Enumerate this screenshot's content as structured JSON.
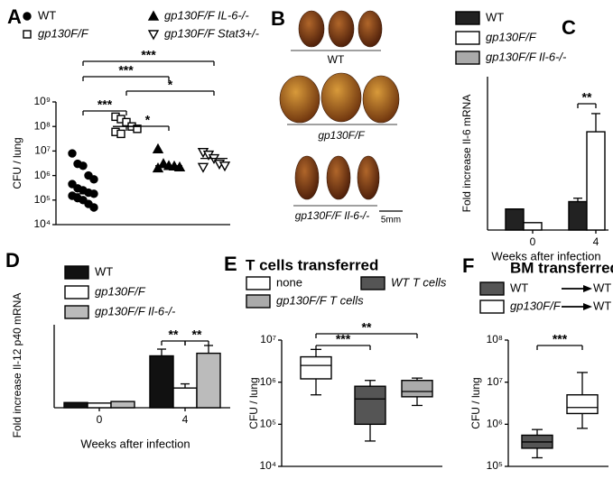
{
  "chart_data": [
    {
      "panel": "A",
      "type": "strip",
      "y_label": "CFU / lung",
      "log_scale": true,
      "ylim": [
        10000,
        1000000000
      ],
      "yticks": [
        {
          "value": 10000,
          "label": "10⁴"
        },
        {
          "value": 100000,
          "label": "10⁵"
        },
        {
          "value": 1000000,
          "label": "10⁶"
        },
        {
          "value": 10000000,
          "label": "10⁷"
        },
        {
          "value": 100000000,
          "label": "10⁸"
        },
        {
          "value": 1000000000,
          "label": "10⁹"
        }
      ],
      "series": [
        {
          "name": "WT",
          "marker": "circle",
          "color": "#000000",
          "values": [
            8000000,
            3000000,
            2500000,
            1000000,
            700000,
            450000,
            300000,
            250000,
            200000,
            180000,
            150000,
            120000,
            100000,
            70000,
            50000
          ],
          "median": 180000
        },
        {
          "name": "gp130F/F",
          "marker": "square",
          "color": "#ffffff",
          "values": [
            250000000,
            200000000,
            150000000,
            100000000,
            80000000,
            60000000,
            50000000
          ],
          "median": 100000000
        },
        {
          "name": "gp130F/F IL-6-/-",
          "marker": "triangle",
          "color": "#000000",
          "values": [
            12000000,
            3000000,
            2500000,
            2400000,
            2200000,
            2000000
          ],
          "median": 2500000
        },
        {
          "name": "gp130F/F Stat3+/-",
          "marker": "triangle-down",
          "color": "#ffffff",
          "values": [
            9000000,
            7000000,
            5000000,
            3000000,
            2500000,
            2200000
          ],
          "median": 5000000
        }
      ],
      "brackets": [
        {
          "from": 0,
          "to": 3,
          "label": "***"
        },
        {
          "from": 0,
          "to": 2,
          "label": "***"
        },
        {
          "from": 1,
          "to": 3,
          "label": "*"
        },
        {
          "from": 0,
          "to": 1,
          "label": "***"
        },
        {
          "from": 1,
          "to": 2,
          "label": "*"
        }
      ]
    },
    {
      "panel": "C",
      "type": "bar",
      "y_label": "Fold increase Il-6 mRNA",
      "x_label": "Weeks after infection",
      "categories": [
        "0",
        "4"
      ],
      "ylim": [
        0,
        27
      ],
      "series": [
        {
          "name": "WT",
          "color": "#222222",
          "values": [
            3.7,
            5.0
          ],
          "errors": [
            null,
            0.6
          ]
        },
        {
          "name": "gp130F/F",
          "color": "#ffffff",
          "values": [
            1.3,
            17.3
          ],
          "errors": [
            null,
            3.2
          ]
        },
        {
          "name": "gp130F/F Il-6-/-",
          "color": "#aaaaaa",
          "values": [
            null,
            null
          ],
          "errors": [
            null,
            null
          ]
        }
      ],
      "brackets": [
        {
          "category": 1,
          "from": 0,
          "to": 1,
          "label": "**"
        }
      ]
    },
    {
      "panel": "D",
      "type": "bar",
      "y_label": "Fold increase Il-12 p40 mRNA",
      "x_label": "Weeks after infection",
      "categories": [
        "0",
        "4"
      ],
      "ylim": [
        0,
        16
      ],
      "series": [
        {
          "name": "WT",
          "color": "#111111",
          "values": [
            1.0,
            10.0
          ],
          "errors": [
            null,
            1.3
          ]
        },
        {
          "name": "gp130F/F",
          "color": "#ffffff",
          "values": [
            0.9,
            3.8
          ],
          "errors": [
            null,
            0.8
          ]
        },
        {
          "name": "gp130F/F Il-6-/-",
          "color": "#bbbbbb",
          "values": [
            1.2,
            10.5
          ],
          "errors": [
            null,
            1.5
          ]
        }
      ],
      "brackets": [
        {
          "category": 1,
          "from": 0,
          "to": 1,
          "label": "**"
        },
        {
          "category": 1,
          "from": 1,
          "to": 2,
          "label": "**"
        }
      ]
    },
    {
      "panel": "E",
      "type": "box",
      "title": "T cells transferred",
      "y_label": "CFU / lung",
      "log_scale": true,
      "ylim": [
        10000,
        10000000
      ],
      "yticks": [
        {
          "value": 10000,
          "label": "10⁴"
        },
        {
          "value": 100000,
          "label": "10⁵"
        },
        {
          "value": 1000000,
          "label": "10⁶"
        },
        {
          "value": 10000000,
          "label": "10⁷"
        }
      ],
      "series": [
        {
          "name": "none",
          "color": "#ffffff",
          "min": 500000,
          "q1": 1200000,
          "median": 2500000,
          "q3": 4000000,
          "max": 6000000
        },
        {
          "name": "WT T cells",
          "color": "#555555",
          "min": 40000,
          "q1": 100000,
          "median": 400000,
          "q3": 800000,
          "max": 1100000
        },
        {
          "name": "gp130F/F T cells",
          "color": "#aaaaaa",
          "min": 280000,
          "q1": 450000,
          "median": 600000,
          "q3": 1100000,
          "max": 1250000
        }
      ],
      "brackets": [
        {
          "from": 0,
          "to": 1,
          "label": "***"
        },
        {
          "from": 0,
          "to": 2,
          "label": "**"
        }
      ]
    },
    {
      "panel": "F",
      "type": "box",
      "title": "BM transferred",
      "y_label": "CFU / lung",
      "log_scale": true,
      "ylim": [
        100000,
        100000000
      ],
      "yticks": [
        {
          "value": 100000,
          "label": "10⁵"
        },
        {
          "value": 1000000,
          "label": "10⁶"
        },
        {
          "value": 10000000,
          "label": "10⁷"
        },
        {
          "value": 100000000,
          "label": "10⁸"
        }
      ],
      "series": [
        {
          "name": "WT",
          "recipient": "WT",
          "color": "#555555",
          "min": 160000,
          "q1": 270000,
          "median": 380000,
          "q3": 550000,
          "max": 750000
        },
        {
          "name": "gp130F/F",
          "recipient": "WT",
          "color": "#ffffff",
          "min": 800000,
          "q1": 1800000,
          "median": 2500000,
          "q3": 5000000,
          "max": 17000000
        }
      ],
      "brackets": [
        {
          "from": 0,
          "to": 1,
          "label": "***"
        }
      ]
    }
  ],
  "images": {
    "panel": "B",
    "captions": [
      "WT",
      "gp130F/F",
      "gp130F/F Il-6-/-"
    ],
    "scale_bar": "5mm"
  }
}
